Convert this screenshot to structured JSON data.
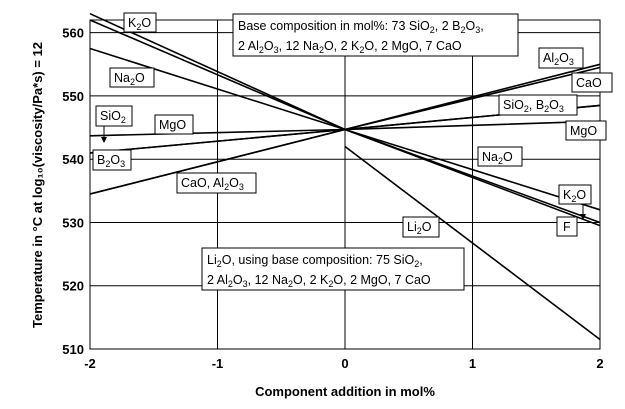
{
  "chart_data": {
    "type": "line",
    "title": "",
    "xlabel": "Component addition in mol%",
    "ylabel": "Temperature in °C at log₁₀(viscosity/Pa*s) = 12",
    "xlim": [
      -2,
      2
    ],
    "ylim": [
      510,
      562
    ],
    "x_ticks": [
      -2,
      -1,
      0,
      1,
      2
    ],
    "y_ticks": [
      510,
      520,
      530,
      540,
      550,
      560
    ],
    "grid": true,
    "annotations": [
      "Base composition in mol%: 73 SiO₂, 2 B₂O₃,",
      "2 Al₂O₃, 12 Na₂O, 2 K₂O, 2 MgO, 7 CaO",
      "Li₂O, using base composition: 75 SiO₂,",
      "2 Al₂O₃, 12 Na₂O, 2 K₂O, 2 MgO, 7 CaO"
    ],
    "series": [
      {
        "name": "K₂O",
        "x": [
          -2,
          0,
          2
        ],
        "y": [
          562,
          544.7,
          532
        ]
      },
      {
        "name": "Na₂O",
        "x": [
          -2,
          0,
          2
        ],
        "y": [
          557.5,
          544.7,
          530
        ]
      },
      {
        "name": "SiO₂",
        "x": [
          -2,
          0,
          2
        ],
        "y": [
          541,
          544.7,
          548.5
        ]
      },
      {
        "name": "B₂O₃",
        "x": [
          -2,
          0,
          2
        ],
        "y": [
          541,
          544.7,
          548.5
        ]
      },
      {
        "name": "MgO",
        "x": [
          -2,
          0,
          2
        ],
        "y": [
          543.7,
          544.7,
          546
        ]
      },
      {
        "name": "CaO",
        "x": [
          -2,
          0,
          2
        ],
        "y": [
          534.5,
          544.7,
          554.5
        ]
      },
      {
        "name": "Al₂O₃",
        "x": [
          -2,
          0,
          2
        ],
        "y": [
          534.5,
          544.7,
          555
        ]
      },
      {
        "name": "F",
        "x": [
          -2,
          0,
          2
        ],
        "y": [
          563,
          544.7,
          529.5
        ]
      },
      {
        "name": "Li₂O",
        "x": [
          0,
          2
        ],
        "y": [
          542,
          511.5
        ]
      }
    ]
  }
}
